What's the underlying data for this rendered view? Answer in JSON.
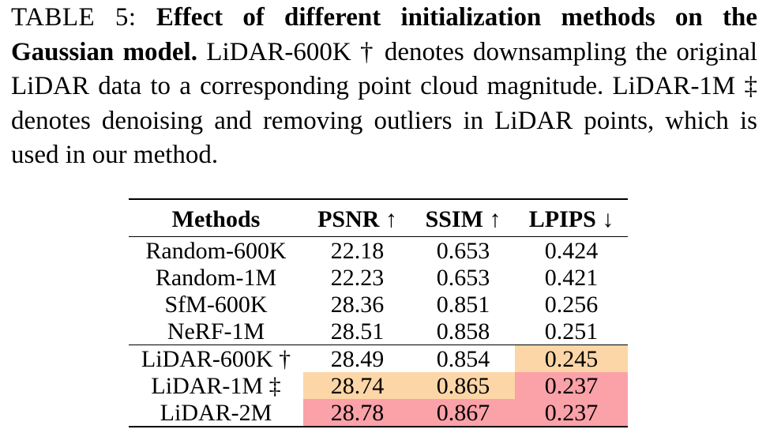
{
  "caption": {
    "label": "TABLE 5:",
    "title": "Effect of different initialization methods on the Gaussian model.",
    "body": "LiDAR-600K † denotes downsampling the original LiDAR data to a corresponding point cloud magnitude. LiDAR-1M ‡ denotes denoising and removing outliers in LiDAR points, which is used in our method."
  },
  "table": {
    "headers": {
      "method": "Methods",
      "psnr": "PSNR ↑",
      "ssim": "SSIM ↑",
      "lpips": "LPIPS ↓"
    },
    "rows": [
      {
        "method": "Random-600K",
        "psnr": "22.18",
        "ssim": "0.653",
        "lpips": "0.424"
      },
      {
        "method": "Random-1M",
        "psnr": "22.23",
        "ssim": "0.653",
        "lpips": "0.421"
      },
      {
        "method": "SfM-600K",
        "psnr": "28.36",
        "ssim": "0.851",
        "lpips": "0.256"
      },
      {
        "method": "NeRF-1M",
        "psnr": "28.51",
        "ssim": "0.858",
        "lpips": "0.251"
      },
      {
        "method": "LiDAR-600K †",
        "psnr": "28.49",
        "ssim": "0.854",
        "lpips": "0.245"
      },
      {
        "method": "LiDAR-1M ‡",
        "psnr": "28.74",
        "ssim": "0.865",
        "lpips": "0.237"
      },
      {
        "method": "LiDAR-2M",
        "psnr": "28.78",
        "ssim": "0.867",
        "lpips": "0.237"
      }
    ]
  },
  "highlight_colors": {
    "best": "#fba1a8",
    "second_best": "#fcd6a7"
  }
}
